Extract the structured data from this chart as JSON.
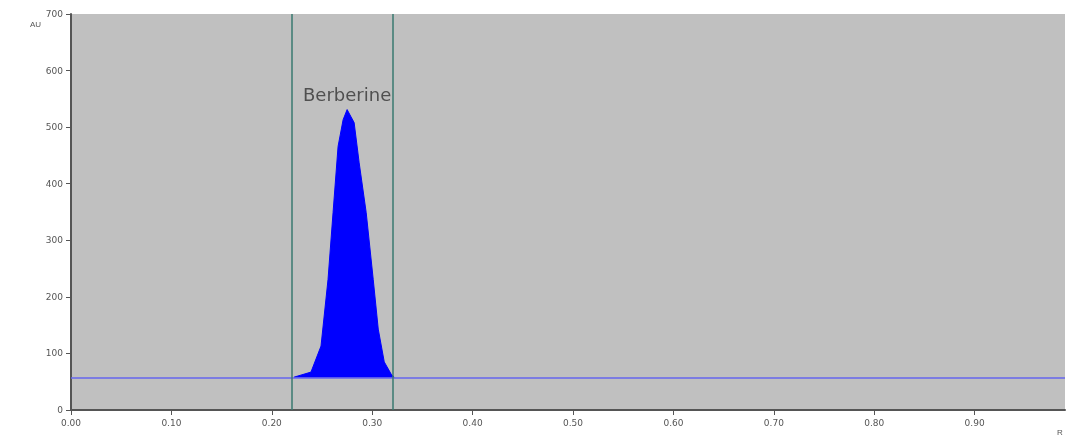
{
  "chart_data": {
    "type": "area",
    "xlabel": "R",
    "ylabel": "AU",
    "x": [
      0.222,
      0.239,
      0.249,
      0.256,
      0.261,
      0.266,
      0.271,
      0.275,
      0.282,
      0.287,
      0.294,
      0.301,
      0.306,
      0.312,
      0.319,
      0.322
    ],
    "series": [
      {
        "color": "#0000ff",
        "values": [
          58,
          67,
          113,
          231,
          349,
          466,
          513,
          531,
          508,
          437,
          349,
          231,
          143,
          85,
          63,
          58
        ]
      }
    ],
    "xlim": [
      0,
      0.99
    ],
    "ylim": [
      0,
      700
    ],
    "xticks": [
      {
        "value": 0,
        "label": "0.00"
      },
      {
        "value": 0.1,
        "label": "0.10"
      },
      {
        "value": 0.2,
        "label": "0.20"
      },
      {
        "value": 0.3,
        "label": "0.30"
      },
      {
        "value": 0.4,
        "label": "0.40"
      },
      {
        "value": 0.5,
        "label": "0.50"
      },
      {
        "value": 0.6,
        "label": "0.60"
      },
      {
        "value": 0.7,
        "label": "0.70"
      },
      {
        "value": 0.8,
        "label": "0.80"
      },
      {
        "value": 0.9,
        "label": "0.90"
      }
    ],
    "yticks": [
      0,
      100,
      200,
      300,
      400,
      500,
      600,
      700
    ],
    "ref_lines": [
      {
        "axis": "y",
        "value": 57,
        "color": "#6666ee"
      },
      {
        "axis": "x",
        "value": 0.22,
        "color": "#3a7a70"
      },
      {
        "axis": "x",
        "value": 0.323,
        "color": "#3a7a70"
      }
    ],
    "annotations": [
      {
        "text": "Berberine",
        "x": 0.275,
        "y": 531
      }
    ],
    "grid": false,
    "marker": "none"
  }
}
